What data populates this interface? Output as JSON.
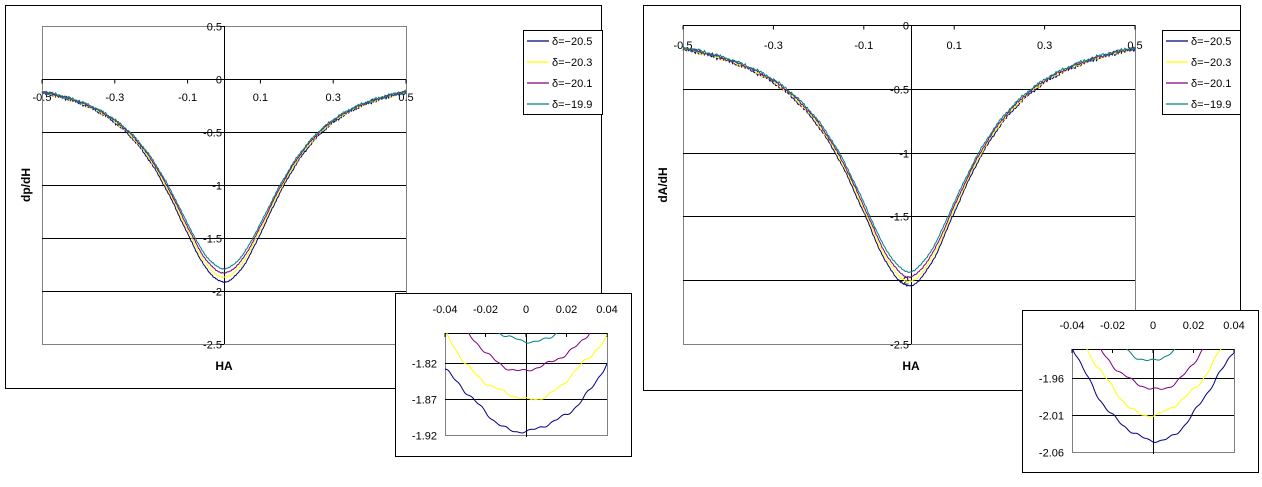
{
  "chart_data": [
    {
      "type": "line",
      "title": "",
      "xlabel": "HA",
      "ylabel": "dp/dH",
      "xlim": [
        -0.5,
        0.5
      ],
      "ylim": [
        -2.5,
        0.5
      ],
      "xticks": [
        "-0.5",
        "-0.3",
        "-0.1",
        "0.1",
        "0.3",
        "0.5"
      ],
      "yticks": [
        "0.5",
        "0",
        "-0.5",
        "-1",
        "-1.5",
        "-2",
        "-2.5"
      ],
      "grid": "horizontal",
      "legend": "top-right",
      "x": [
        -0.5,
        -0.45,
        -0.4,
        -0.35,
        -0.3,
        -0.25,
        -0.2,
        -0.15,
        -0.1,
        -0.05,
        0,
        0.05,
        0.1,
        0.15,
        0.2,
        0.25,
        0.3,
        0.35,
        0.4,
        0.45,
        0.5
      ],
      "profile": [
        0.068,
        0.088,
        0.117,
        0.157,
        0.215,
        0.297,
        0.415,
        0.574,
        0.762,
        0.93,
        1,
        0.93,
        0.762,
        0.574,
        0.415,
        0.297,
        0.215,
        0.157,
        0.117,
        0.088,
        0.068
      ],
      "series": [
        {
          "name": "δ=−20.5",
          "color": "#000080",
          "min": -1.915
        },
        {
          "name": "δ=−20.3",
          "color": "#ffff00",
          "min": -1.87
        },
        {
          "name": "δ=−20.1",
          "color": "#800080",
          "min": -1.83
        },
        {
          "name": "δ=−19.9",
          "color": "#008080",
          "min": -1.79
        }
      ],
      "inset": {
        "xlim": [
          -0.04,
          0.04
        ],
        "ylim": [
          -1.92,
          -1.778
        ],
        "xticks": [
          "-0.04",
          "-0.02",
          "0",
          "0.02",
          "0.04"
        ],
        "yticks": [
          "-1.82",
          "-1.87",
          "-1.92"
        ]
      }
    },
    {
      "type": "line",
      "title": "",
      "xlabel": "HA",
      "ylabel": "dA/dH",
      "xlim": [
        -0.5,
        0.5
      ],
      "ylim": [
        -2.5,
        0
      ],
      "xticks": [
        "-0.5",
        "-0.3",
        "-0.1",
        "0.1",
        "0.3",
        "0.5"
      ],
      "yticks": [
        "0",
        "-0.5",
        "-1",
        "-1.5",
        "-2",
        "-2.5"
      ],
      "grid": "horizontal",
      "legend": "top-right",
      "x": [
        -0.5,
        -0.45,
        -0.4,
        -0.35,
        -0.3,
        -0.25,
        -0.2,
        -0.15,
        -0.1,
        -0.05,
        0,
        0.05,
        0.1,
        0.15,
        0.2,
        0.25,
        0.3,
        0.35,
        0.4,
        0.45,
        0.5
      ],
      "profile": [
        0.093,
        0.112,
        0.138,
        0.173,
        0.221,
        0.291,
        0.39,
        0.532,
        0.719,
        0.911,
        1,
        0.911,
        0.719,
        0.532,
        0.39,
        0.291,
        0.221,
        0.173,
        0.138,
        0.112,
        0.093
      ],
      "series": [
        {
          "name": "δ=−20.5",
          "color": "#000080",
          "min": -2.045
        },
        {
          "name": "δ=−20.3",
          "color": "#ffff00",
          "min": -2.01
        },
        {
          "name": "δ=−20.1",
          "color": "#800080",
          "min": -1.975
        },
        {
          "name": "δ=−19.9",
          "color": "#008080",
          "min": -1.935
        }
      ],
      "inset": {
        "xlim": [
          -0.04,
          0.04
        ],
        "ylim": [
          -2.06,
          -1.92
        ],
        "xticks": [
          "-0.04",
          "-0.02",
          "0",
          "0.02",
          "0.04"
        ],
        "yticks": [
          "-1.96",
          "-2.01",
          "-2.06"
        ]
      }
    }
  ]
}
